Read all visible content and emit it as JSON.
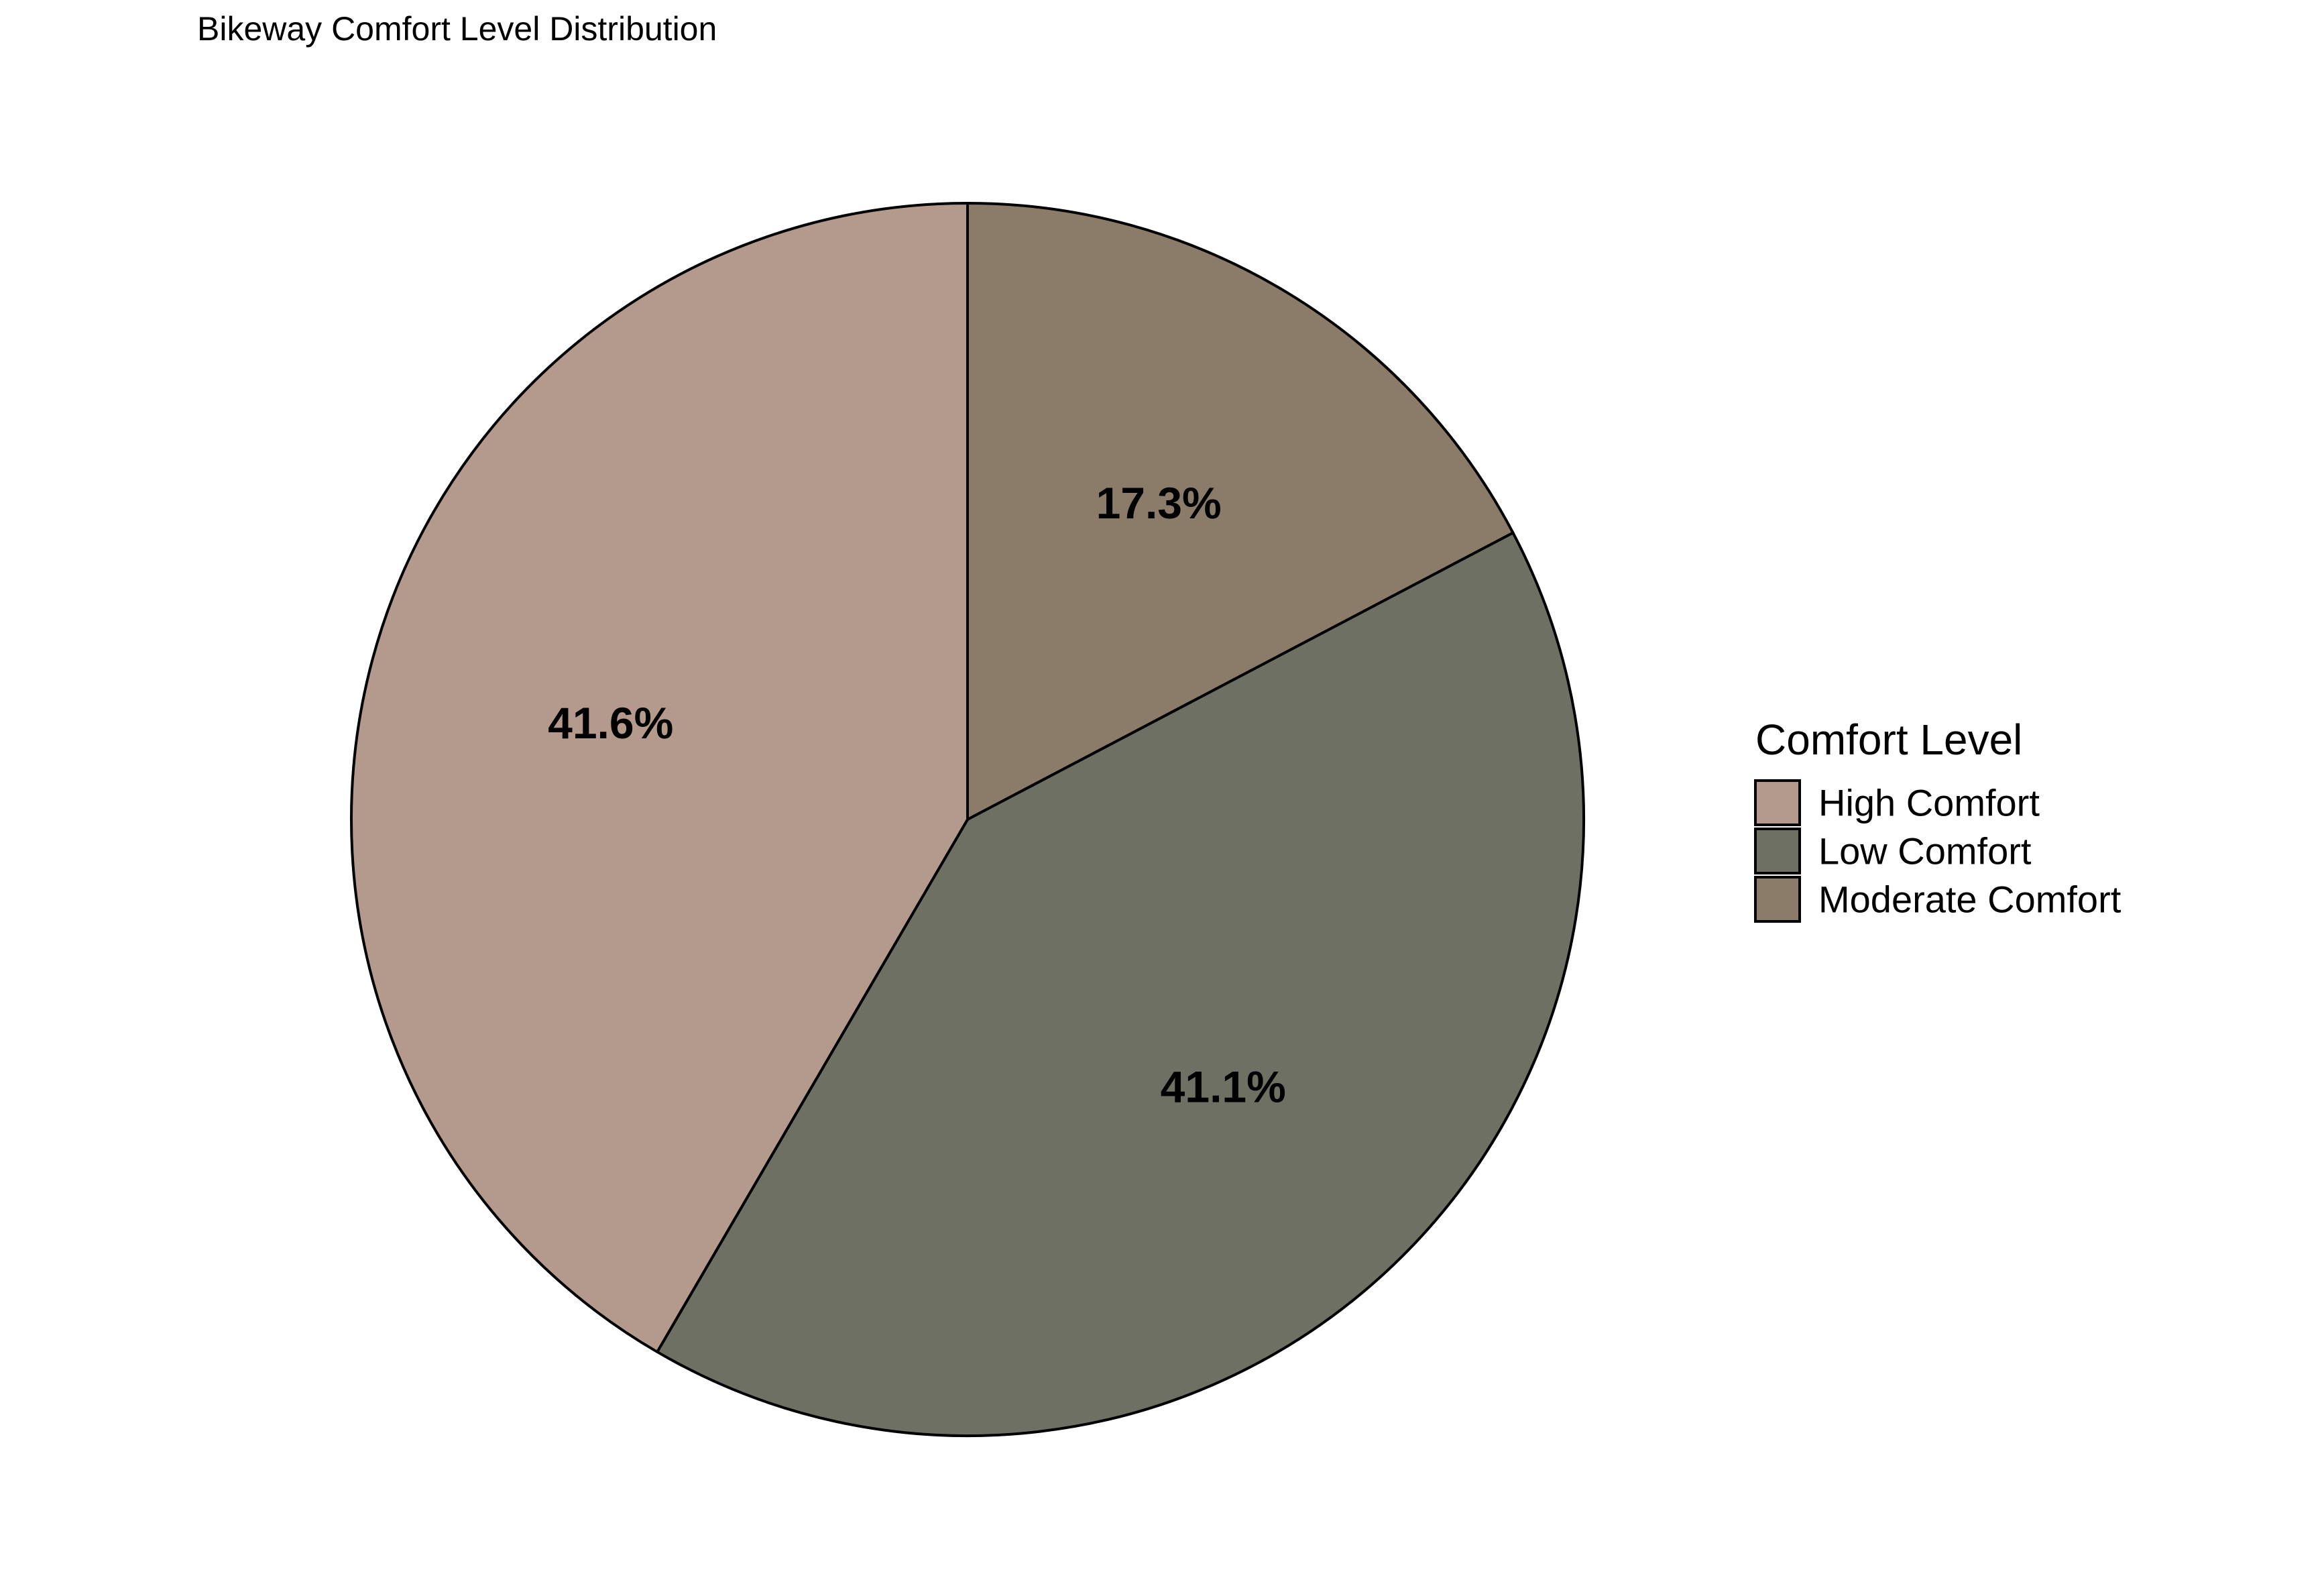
{
  "chart_data": {
    "type": "pie",
    "title": "Bikeway Comfort Level Distribution",
    "legend": {
      "title": "Comfort Level",
      "position": "right"
    },
    "start_angle_deg": 0,
    "direction": "clockwise",
    "slices": [
      {
        "label": "Moderate Comfort",
        "value": 17.3,
        "display": "17.3%",
        "color": "#8B7B69"
      },
      {
        "label": "Low Comfort",
        "value": 41.1,
        "display": "41.1%",
        "color": "#6E7063"
      },
      {
        "label": "High Comfort",
        "value": 41.6,
        "display": "41.6%",
        "color": "#B49A8C"
      }
    ],
    "legend_order": [
      "High Comfort",
      "Low Comfort",
      "Moderate Comfort"
    ]
  }
}
